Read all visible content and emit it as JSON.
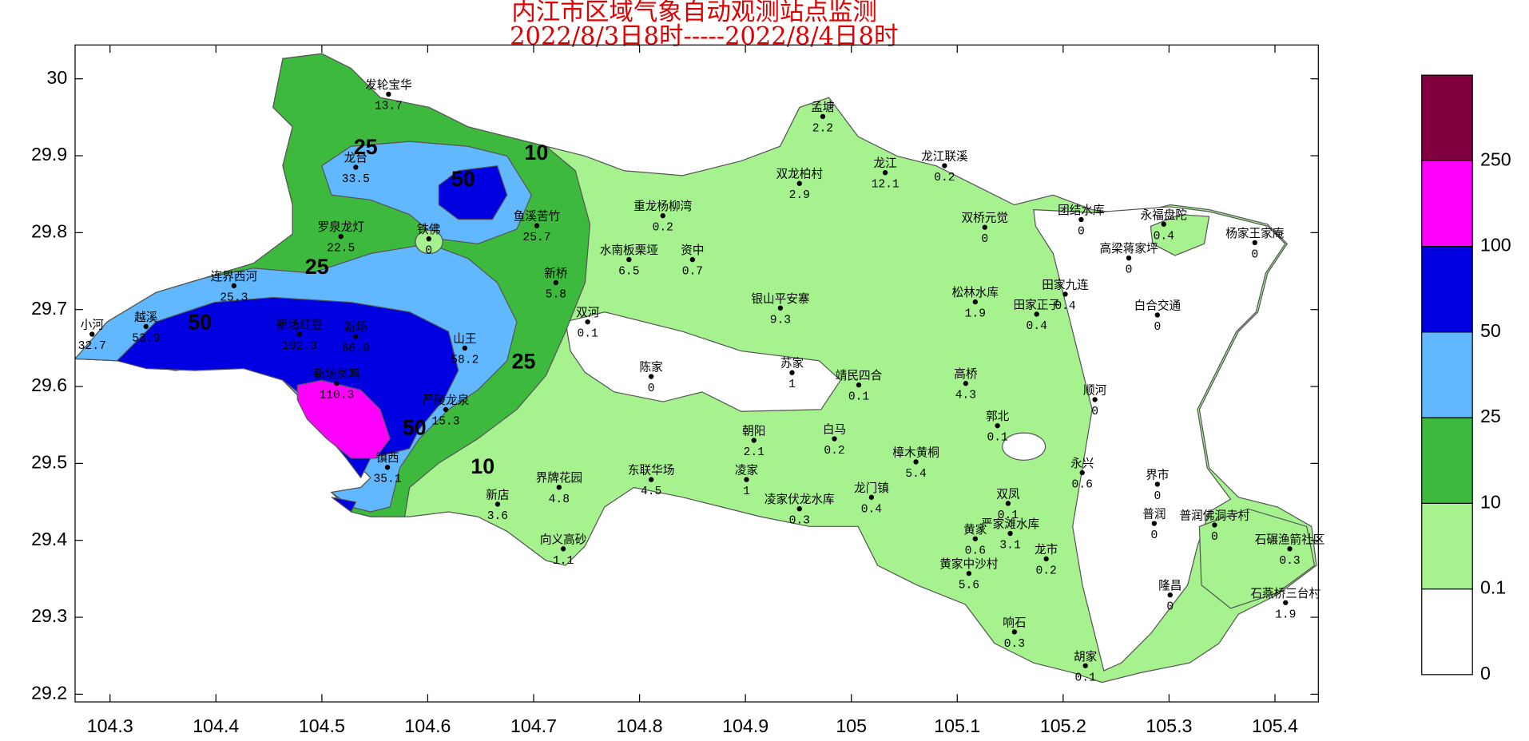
{
  "title": "内江市区域气象自动观测站点监测",
  "subtitle": "2022/8/3日8时-----2022/8/4日8时",
  "map": {
    "xlim": [
      104.267,
      105.441
    ],
    "ylim": [
      29.19,
      30.044
    ],
    "xticks": [
      104.3,
      104.4,
      104.5,
      104.6,
      104.7,
      104.8,
      104.9,
      105,
      105.1,
      105.2,
      105.3,
      105.4
    ],
    "yticks": [
      29.2,
      29.3,
      29.4,
      29.5,
      29.6,
      29.7,
      29.8,
      29.9,
      30
    ]
  },
  "contour_labels": [
    25,
    50,
    10,
    25,
    50,
    25,
    50,
    10
  ],
  "legend": {
    "levels": [
      {
        "value": 0,
        "color": "#ffffff"
      },
      {
        "value": 0.1,
        "color": "#a6f28f"
      },
      {
        "value": 10,
        "color": "#3dba3d"
      },
      {
        "value": 25,
        "color": "#61b8ff"
      },
      {
        "value": 50,
        "color": "#0000e1"
      },
      {
        "value": 100,
        "color": "#ff00ff"
      },
      {
        "value": 250,
        "color": "#800040"
      }
    ]
  },
  "stations": [
    {
      "name": "发轮宝华",
      "value": 13.7,
      "lon": 104.563,
      "lat": 29.98
    },
    {
      "name": "龙台",
      "value": 33.5,
      "lon": 104.532,
      "lat": 29.885
    },
    {
      "name": "罗泉龙灯",
      "value": 22.5,
      "lon": 104.518,
      "lat": 29.795
    },
    {
      "name": "连界西河",
      "value": 25.3,
      "lon": 104.417,
      "lat": 29.731
    },
    {
      "name": "小河",
      "value": 32.7,
      "lon": 104.283,
      "lat": 29.668
    },
    {
      "name": "越溪",
      "value": 53.9,
      "lon": 104.334,
      "lat": 29.678
    },
    {
      "name": "新场",
      "value": 66.9,
      "lon": 104.532,
      "lat": 29.665
    },
    {
      "name": "新场红豆",
      "value": 102.3,
      "lon": 104.479,
      "lat": 29.668
    },
    {
      "name": "新场凤鸣",
      "value": 110.3,
      "lon": 104.514,
      "lat": 29.604
    },
    {
      "name": "镇西",
      "value": 35.1,
      "lon": 104.562,
      "lat": 29.495
    },
    {
      "name": "山王",
      "value": 58.2,
      "lon": 104.635,
      "lat": 29.65
    },
    {
      "name": "新桥",
      "value": 5.8,
      "lon": 104.721,
      "lat": 29.735
    },
    {
      "name": "鱼溪苦竹",
      "value": 25.7,
      "lon": 104.703,
      "lat": 29.809
    },
    {
      "name": "铁佛",
      "value": 0,
      "lon": 104.601,
      "lat": 29.792
    },
    {
      "name": "孟塘",
      "value": 2.2,
      "lon": 104.973,
      "lat": 29.951
    },
    {
      "name": "双龙柏村",
      "value": 2.9,
      "lon": 104.951,
      "lat": 29.864
    },
    {
      "name": "龙江",
      "value": 12.1,
      "lon": 105.032,
      "lat": 29.878
    },
    {
      "name": "龙江联溪",
      "value": 0.2,
      "lon": 105.088,
      "lat": 29.887
    },
    {
      "name": "重龙杨柳湾",
      "value": 0.2,
      "lon": 104.822,
      "lat": 29.822
    },
    {
      "name": "水南板栗垭",
      "value": 6.5,
      "lon": 104.79,
      "lat": 29.765
    },
    {
      "name": "资中",
      "value": 0.7,
      "lon": 104.85,
      "lat": 29.765
    },
    {
      "name": "银山平安寨",
      "value": 9.3,
      "lon": 104.933,
      "lat": 29.702
    },
    {
      "name": "松林水库",
      "value": 1.9,
      "lon": 105.117,
      "lat": 29.71
    },
    {
      "name": "双桥元觉",
      "value": 0,
      "lon": 105.126,
      "lat": 29.807
    },
    {
      "name": "团结水库",
      "value": 0,
      "lon": 105.217,
      "lat": 29.817
    },
    {
      "name": "永福盘陀",
      "value": 0.4,
      "lon": 105.295,
      "lat": 29.811
    },
    {
      "name": "杨家王家庵",
      "value": 0,
      "lon": 105.381,
      "lat": 29.787
    },
    {
      "name": "高梁蒋家坪",
      "value": 0,
      "lon": 105.262,
      "lat": 29.767
    },
    {
      "name": "田家九连",
      "value": 0.4,
      "lon": 105.202,
      "lat": 29.72
    },
    {
      "name": "田家正子",
      "value": 0.4,
      "lon": 105.175,
      "lat": 29.694
    },
    {
      "name": "白合交通",
      "value": 0,
      "lon": 105.289,
      "lat": 29.693
    },
    {
      "name": "高桥",
      "value": 4.3,
      "lon": 105.108,
      "lat": 29.604
    },
    {
      "name": "顺河",
      "value": 0,
      "lon": 105.23,
      "lat": 29.583
    },
    {
      "name": "郭北",
      "value": 0.1,
      "lon": 105.138,
      "lat": 29.549
    },
    {
      "name": "永兴",
      "value": 0.6,
      "lon": 105.218,
      "lat": 29.488
    },
    {
      "name": "界市",
      "value": 0,
      "lon": 105.289,
      "lat": 29.473
    },
    {
      "name": "普润",
      "value": 0,
      "lon": 105.286,
      "lat": 29.422
    },
    {
      "name": "普润佛洞寺村",
      "value": 0,
      "lon": 105.343,
      "lat": 29.42
    },
    {
      "name": "龙市",
      "value": 0.2,
      "lon": 105.184,
      "lat": 29.376
    },
    {
      "name": "黄家",
      "value": 0.6,
      "lon": 105.117,
      "lat": 29.402
    },
    {
      "name": "黄家中沙村",
      "value": 5.6,
      "lon": 105.111,
      "lat": 29.357
    },
    {
      "name": "双凤",
      "value": 0.1,
      "lon": 105.148,
      "lat": 29.448
    },
    {
      "name": "严家滩水库",
      "value": 3.1,
      "lon": 105.15,
      "lat": 29.409
    },
    {
      "name": "响石",
      "value": 0.3,
      "lon": 105.154,
      "lat": 29.281
    },
    {
      "name": "胡家",
      "value": 0.1,
      "lon": 105.221,
      "lat": 29.237
    },
    {
      "name": "隆昌",
      "value": 0,
      "lon": 105.301,
      "lat": 29.329
    },
    {
      "name": "石碾渔箭社区",
      "value": 0.3,
      "lon": 105.414,
      "lat": 29.389
    },
    {
      "name": "石燕桥三台村",
      "value": 1.9,
      "lon": 105.41,
      "lat": 29.319
    },
    {
      "name": "凌家",
      "value": 1,
      "lon": 104.901,
      "lat": 29.479
    },
    {
      "name": "凌家伏龙水库",
      "value": 0.3,
      "lon": 104.951,
      "lat": 29.441
    },
    {
      "name": "龙门镇",
      "value": 0.4,
      "lon": 105.019,
      "lat": 29.456
    },
    {
      "name": "东联华场",
      "value": 4.5,
      "lon": 104.811,
      "lat": 29.479
    },
    {
      "name": "界牌花园",
      "value": 4.8,
      "lon": 104.724,
      "lat": 29.469
    },
    {
      "name": "向义高砂",
      "value": 1.1,
      "lon": 104.728,
      "lat": 29.389
    },
    {
      "name": "新店",
      "value": 3.6,
      "lon": 104.666,
      "lat": 29.447
    },
    {
      "name": "严陵龙泉",
      "value": 15.3,
      "lon": 104.617,
      "lat": 29.57
    },
    {
      "name": "双河",
      "value": 0.1,
      "lon": 104.751,
      "lat": 29.684
    },
    {
      "name": "陈家",
      "value": 0,
      "lon": 104.811,
      "lat": 29.613
    },
    {
      "name": "苏家",
      "value": 1,
      "lon": 104.944,
      "lat": 29.618
    },
    {
      "name": "靖民四合",
      "value": 0.1,
      "lon": 105.007,
      "lat": 29.602
    },
    {
      "name": "樟木黄桐",
      "value": 5.4,
      "lon": 105.061,
      "lat": 29.502
    },
    {
      "name": "朝阳",
      "value": 2.1,
      "lon": 104.908,
      "lat": 29.53
    },
    {
      "name": "白马",
      "value": 0.2,
      "lon": 104.984,
      "lat": 29.532
    }
  ]
}
